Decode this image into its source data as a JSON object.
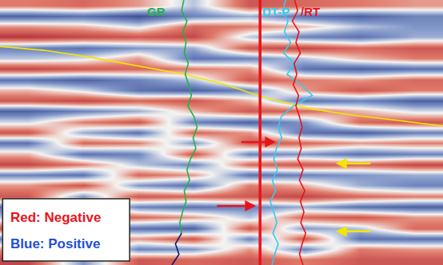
{
  "chart_data": {
    "type": "heatmap",
    "tick_labels": false,
    "grid": false,
    "xlim": [
      0,
      100
    ],
    "ylim": [
      100,
      0
    ],
    "zlim": [
      -1,
      1
    ],
    "x": [
      6.25,
      18.75,
      31.25,
      43.75,
      56.25,
      68.75,
      81.25,
      93.75
    ],
    "y": [
      2,
      6,
      10,
      14,
      18,
      22,
      26,
      30,
      34,
      38,
      42,
      46,
      50,
      54,
      58,
      62,
      66,
      70,
      74,
      78,
      82,
      86,
      90,
      94,
      98
    ],
    "z": [
      [
        -0.4,
        -0.5,
        -0.3,
        0.2,
        -0.6,
        -0.5,
        -0.4,
        -0.3
      ],
      [
        0.7,
        0.6,
        0.8,
        0.5,
        0.3,
        0.6,
        0.7,
        0.5
      ],
      [
        -0.3,
        -0.2,
        0.1,
        -0.5,
        -0.4,
        -0.2,
        0.2,
        0.4
      ],
      [
        -0.8,
        -0.7,
        -0.6,
        -0.7,
        0.2,
        0.5,
        0.6,
        0.3
      ],
      [
        0.5,
        0.6,
        0.4,
        0.3,
        -0.6,
        -0.7,
        -0.5,
        -0.6
      ],
      [
        0.2,
        0.1,
        -0.3,
        0.6,
        0.5,
        0.2,
        -0.2,
        -0.4
      ],
      [
        -0.7,
        -0.6,
        -0.5,
        -0.4,
        -0.3,
        0.6,
        0.7,
        0.6
      ],
      [
        0.6,
        0.7,
        0.5,
        0.2,
        -0.6,
        -0.4,
        -0.3,
        -0.5
      ],
      [
        -0.2,
        0.1,
        0.6,
        0.7,
        0.5,
        -0.3,
        -0.6,
        -0.4
      ],
      [
        -0.6,
        -0.7,
        -0.5,
        -0.6,
        -0.2,
        0.6,
        0.5,
        0.7
      ],
      [
        0.7,
        0.5,
        0.3,
        -0.2,
        -0.6,
        -0.5,
        -0.2,
        0.1
      ],
      [
        0.1,
        -0.4,
        -0.6,
        0.5,
        0.7,
        0.4,
        -0.5,
        -0.6
      ],
      [
        -0.6,
        0.3,
        0.6,
        -0.5,
        -0.3,
        0.6,
        0.7,
        0.5
      ],
      [
        0.6,
        -0.5,
        -0.4,
        0.4,
        -0.6,
        -0.5,
        -0.3,
        -0.4
      ],
      [
        -0.2,
        0.6,
        0.5,
        -0.6,
        0.5,
        0.4,
        0.6,
        0.5
      ],
      [
        -0.7,
        -0.4,
        0.2,
        0.5,
        -0.5,
        -0.6,
        -0.5,
        -0.7
      ],
      [
        0.5,
        0.6,
        -0.5,
        -0.3,
        0.6,
        0.5,
        0.4,
        0.3
      ],
      [
        -0.3,
        -0.6,
        0.4,
        0.6,
        -0.4,
        -0.2,
        0.3,
        0.5
      ],
      [
        -0.6,
        0.4,
        -0.6,
        -0.5,
        -0.6,
        -0.7,
        -0.5,
        -0.4
      ],
      [
        0.6,
        -0.3,
        0.5,
        0.6,
        0.5,
        0.3,
        0.6,
        0.7
      ],
      [
        0.2,
        -0.6,
        -0.5,
        -0.3,
        0.2,
        -0.5,
        -0.6,
        -0.3
      ],
      [
        -0.6,
        0.5,
        0.6,
        0.7,
        -0.6,
        0.4,
        0.2,
        -0.5
      ],
      [
        0.5,
        -0.4,
        -0.3,
        -0.6,
        0.5,
        -0.6,
        0.6,
        0.6
      ],
      [
        -0.3,
        -0.6,
        0.5,
        0.4,
        -0.3,
        0.5,
        -0.4,
        -0.3
      ],
      [
        -0.7,
        0.4,
        -0.6,
        -0.5,
        -0.6,
        -0.4,
        -0.6,
        -0.6
      ]
    ],
    "series": [
      {
        "type": "line",
        "color": "#f2e600",
        "x": [
          0,
          10,
          20,
          30,
          41.5,
          50,
          60,
          70,
          80,
          90,
          100
        ],
        "y": [
          17.5,
          19,
          21.5,
          24.5,
          28,
          31.5,
          37,
          41,
          43.5,
          45.5,
          47.5
        ]
      },
      {
        "type": "line",
        "color": "#e8141c",
        "x": [
          58.7,
          58.7
        ],
        "y": [
          0,
          100
        ]
      },
      {
        "name": "GR",
        "type": "line",
        "color": "#22b14c",
        "x": [
          41.5,
          41.0,
          42.2,
          41.3,
          42.0,
          41.6,
          42.5,
          41.8,
          42.6,
          43.2,
          42.4,
          43.8,
          44.5,
          43.6,
          44.2,
          43.0,
          42.2,
          42.8,
          41.6,
          42.0,
          41.2,
          40.6,
          41.0
        ],
        "y": [
          0,
          4,
          8,
          12,
          16,
          20,
          24,
          28,
          32,
          36,
          40,
          44,
          48,
          52,
          56,
          60,
          64,
          68,
          72,
          76,
          80,
          84,
          88
        ]
      },
      {
        "type": "line",
        "color": "#0a1a6e",
        "x": [
          41.0,
          39.6,
          40.4,
          38.8
        ],
        "y": [
          88,
          92,
          96,
          100
        ]
      },
      {
        "name": "DT-P",
        "type": "line",
        "color": "#33ccee",
        "x": [
          64.5,
          63.8,
          65.0,
          64.2,
          65.6,
          64.0,
          66.5,
          64.8,
          68.0,
          70.5,
          66.2,
          63.5,
          62.8,
          63.6,
          62.4,
          61.8,
          62.6,
          61.5,
          62.2,
          61.0,
          61.8,
          62.5,
          61.6,
          62.8,
          62.0,
          61.4
        ],
        "y": [
          0,
          4,
          8,
          12,
          16,
          20,
          24,
          28,
          32,
          36,
          40,
          44,
          48,
          52,
          56,
          60,
          64,
          68,
          72,
          76,
          80,
          84,
          88,
          92,
          96,
          100
        ]
      },
      {
        "name": "RT",
        "type": "line",
        "color": "#e8141c",
        "x": [
          66.5,
          67.2,
          66.0,
          67.5,
          66.8,
          67.8,
          66.4,
          67.0,
          66.2,
          67.4,
          66.8,
          67.6,
          68.2,
          67.5,
          68.0,
          67.2,
          68.4,
          67.6,
          68.8,
          67.8,
          68.6,
          67.9,
          69.0,
          68.2,
          67.6,
          68.4
        ],
        "y": [
          0,
          4,
          8,
          12,
          16,
          20,
          24,
          28,
          32,
          36,
          40,
          44,
          48,
          52,
          56,
          60,
          64,
          68,
          72,
          76,
          80,
          84,
          88,
          92,
          96,
          100
        ]
      }
    ],
    "labels": [
      {
        "text": "GR",
        "x": 35.2,
        "y": 4.5,
        "color": "#22b14c"
      },
      {
        "text": "DT-P",
        "x": 62.3,
        "y": 4.5,
        "color": "#33ccee"
      },
      {
        "text": "/RT",
        "x": 70.0,
        "y": 4.5,
        "color": "#e8141c"
      }
    ],
    "arrows": [
      {
        "x": 62.3,
        "y": 53.6,
        "ax": 54.2,
        "ay": 53.6,
        "color": "#e8141c"
      },
      {
        "x": 57.8,
        "y": 77.7,
        "ax": 48.7,
        "ay": 77.7,
        "color": "#e8141c"
      },
      {
        "x": 75.8,
        "y": 61.7,
        "ax": 83.9,
        "ay": 61.7,
        "color": "#f2e600"
      },
      {
        "x": 75.8,
        "y": 87.3,
        "ax": 83.9,
        "ay": 87.3,
        "color": "#f2e600"
      }
    ],
    "key": [
      {
        "text": "Red: Negative",
        "color": "#e8141c"
      },
      {
        "text": "Blue: Positive",
        "color": "#1f4fd8"
      }
    ]
  }
}
